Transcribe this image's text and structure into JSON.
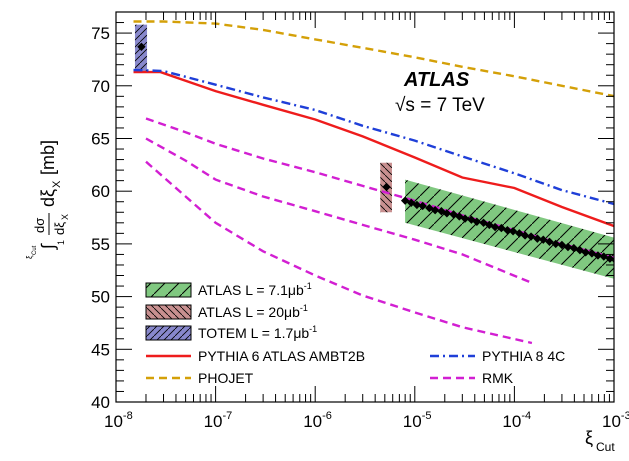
{
  "chart_data": {
    "type": "line",
    "xscale": "log",
    "xlim": [
      1e-08,
      0.001
    ],
    "ylim": [
      40,
      77
    ],
    "xlabel": "ξCut",
    "ylabel": "[mb]",
    "x_ticks": [
      {
        "value": 1e-08,
        "base": "10",
        "exp": "-8"
      },
      {
        "value": 1e-07,
        "base": "10",
        "exp": "-7"
      },
      {
        "value": 1e-06,
        "base": "10",
        "exp": "-6"
      },
      {
        "value": 1e-05,
        "base": "10",
        "exp": "-5"
      },
      {
        "value": 0.0001,
        "base": "10",
        "exp": "-4"
      },
      {
        "value": 0.001,
        "base": "10",
        "exp": "-3"
      }
    ],
    "y_ticks": [
      40,
      45,
      50,
      55,
      60,
      65,
      70,
      75
    ],
    "annotations": {
      "experiment": "ATLAS",
      "energy": "√s = 7 TeV"
    },
    "series": [
      {
        "name": "PYTHIA 6 ATLAS AMBT2B",
        "style": "solid",
        "color": "#ee1c1c",
        "points": [
          [
            1.5e-08,
            71.3
          ],
          [
            2.8e-08,
            71.3
          ],
          [
            1e-07,
            69.5
          ],
          [
            3e-07,
            68.2
          ],
          [
            1e-06,
            66.8
          ],
          [
            3e-06,
            65.2
          ],
          [
            1e-05,
            63.2
          ],
          [
            3e-05,
            61.3
          ],
          [
            0.0001,
            60.3
          ],
          [
            0.0003,
            58.5
          ],
          [
            0.0013,
            56.3
          ]
        ]
      },
      {
        "name": "PYTHIA 8 4C",
        "style": "dashdot",
        "color": "#1f3fd8",
        "points": [
          [
            1.5e-08,
            71.5
          ],
          [
            3e-08,
            71.4
          ],
          [
            1e-07,
            70.1
          ],
          [
            3e-07,
            68.9
          ],
          [
            1e-06,
            67.7
          ],
          [
            3e-06,
            66.2
          ],
          [
            1e-05,
            64.8
          ],
          [
            3e-05,
            63.3
          ],
          [
            0.0001,
            61.7
          ],
          [
            0.0003,
            60.1
          ],
          [
            0.0013,
            58.5
          ]
        ]
      },
      {
        "name": "PHOJET",
        "style": "dashed",
        "color": "#d4a008",
        "points": [
          [
            1.5e-08,
            76.1
          ],
          [
            3e-08,
            76.1
          ],
          [
            1e-07,
            75.9
          ],
          [
            3e-07,
            75.3
          ],
          [
            1e-06,
            74.4
          ],
          [
            3e-06,
            73.6
          ],
          [
            1e-05,
            72.7
          ],
          [
            3e-05,
            71.8
          ],
          [
            0.0001,
            70.9
          ],
          [
            0.0003,
            70.0
          ],
          [
            0.0013,
            68.8
          ]
        ]
      },
      {
        "name": "RMK",
        "style": "dashed",
        "color": "#d21fd2",
        "curves": [
          [
            [
              2e-08,
              66.9
            ],
            [
              5e-08,
              65.6
            ],
            [
              1e-07,
              64.5
            ],
            [
              3e-07,
              63.1
            ],
            [
              1e-06,
              61.8
            ],
            [
              3e-06,
              60.5
            ],
            [
              1e-05,
              59.1
            ],
            [
              3e-05,
              57.7
            ],
            [
              0.0001,
              56.3
            ],
            [
              0.0003,
              55.0
            ],
            [
              0.0013,
              53.4
            ]
          ],
          [
            [
              2e-08,
              65.0
            ],
            [
              5e-08,
              62.9
            ],
            [
              1e-07,
              61.1
            ],
            [
              3e-07,
              59.5
            ],
            [
              1e-06,
              58.1
            ],
            [
              3e-06,
              56.8
            ],
            [
              1e-05,
              55.4
            ],
            [
              3e-05,
              54.0
            ],
            [
              0.00015,
              51.3
            ]
          ],
          [
            [
              2e-08,
              62.8
            ],
            [
              5e-08,
              59.5
            ],
            [
              1e-07,
              57.0
            ],
            [
              3e-07,
              54.3
            ],
            [
              1e-06,
              52.0
            ],
            [
              3e-06,
              50.1
            ],
            [
              1e-05,
              48.5
            ],
            [
              3e-05,
              47.1
            ],
            [
              0.00015,
              45.6
            ]
          ]
        ]
      }
    ],
    "data_points": {
      "atlas_hi": {
        "name": "ATLAS L = 7.1μb⁻¹",
        "x": [
          8e-06,
          9.2e-06,
          1.05e-05,
          1.2e-05,
          1.4e-05,
          1.6e-05,
          1.85e-05,
          2.1e-05,
          2.45e-05,
          2.8e-05,
          3.2e-05,
          3.7e-05,
          4.2e-05,
          4.9e-05,
          5.6e-05,
          6.4e-05,
          7.4e-05,
          8.5e-05,
          9.7e-05,
          0.000112,
          0.000128,
          0.000147,
          0.00017,
          0.000195,
          0.000225,
          0.00026,
          0.0003,
          0.000345,
          0.000395,
          0.000455,
          0.00052,
          0.0006,
          0.00069,
          0.00079,
          0.00091,
          0.00105,
          0.0012
        ],
        "y": [
          59.1,
          58.9,
          58.7,
          58.6,
          58.4,
          58.2,
          58.1,
          57.9,
          57.8,
          57.6,
          57.4,
          57.3,
          57.1,
          57.0,
          56.8,
          56.6,
          56.5,
          56.3,
          56.2,
          56.0,
          55.8,
          55.7,
          55.5,
          55.4,
          55.2,
          55.0,
          54.9,
          54.7,
          54.6,
          54.4,
          54.2,
          54.1,
          53.9,
          53.8,
          53.6,
          53.4,
          53.2
        ],
        "band_upper": [
          [
            8e-06,
            61.1
          ],
          [
            0.0013,
            55.3
          ]
        ],
        "band_lower": [
          [
            8e-06,
            57.0
          ],
          [
            0.0013,
            51.4
          ]
        ],
        "color": "#80c880"
      },
      "atlas_lo": {
        "name": "ATLAS L = 20μb⁻¹",
        "x": 5.2e-06,
        "y": 60.4,
        "band": [
          58.0,
          62.7
        ],
        "x_range": [
          4.5e-06,
          5.9e-06
        ],
        "color": "#c89090"
      },
      "totem": {
        "name": "TOTEM L = 1.7μb⁻¹",
        "x": 1.8e-08,
        "y": 73.7,
        "band": [
          71.3,
          75.8
        ],
        "x_range": [
          1.55e-08,
          2.05e-08
        ],
        "color": "#8888cc"
      }
    },
    "legend": {
      "position": "bottom-left",
      "entries": [
        {
          "label": "ATLAS L = 7.1μb",
          "sup": "-1",
          "kind": "band",
          "color": "#80c880"
        },
        {
          "label": "ATLAS L = 20μb",
          "sup": "-1",
          "kind": "band",
          "color": "#c89090"
        },
        {
          "label": "TOTEM L = 1.7μb",
          "sup": "-1",
          "kind": "band",
          "color": "#8888cc"
        },
        {
          "label": "PYTHIA 6 ATLAS AMBT2B",
          "kind": "line",
          "style": "solid",
          "color": "#ee1c1c"
        },
        {
          "label": "PHOJET",
          "kind": "line",
          "style": "dashed",
          "color": "#d4a008"
        },
        {
          "label": "PYTHIA 8 4C",
          "kind": "line",
          "style": "dashdot",
          "color": "#1f3fd8"
        },
        {
          "label": "RMK",
          "kind": "line",
          "style": "dashed",
          "color": "#d21fd2"
        }
      ]
    }
  }
}
